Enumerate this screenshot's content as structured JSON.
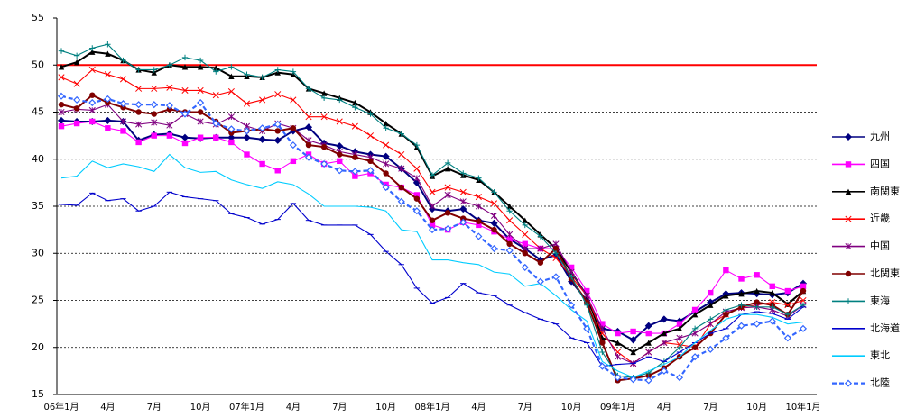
{
  "chart_data": {
    "type": "line",
    "categories": [
      "06年1月",
      null,
      null,
      "4月",
      null,
      null,
      "7月",
      null,
      null,
      "10月",
      null,
      null,
      "07年1月",
      null,
      null,
      "4月",
      null,
      null,
      "7月",
      null,
      null,
      "10月",
      null,
      null,
      "08年1月",
      null,
      null,
      "4月",
      null,
      null,
      "7月",
      null,
      null,
      "10月",
      null,
      null,
      "09年1月",
      null,
      null,
      "4月",
      null,
      null,
      "7月",
      null,
      null,
      "10月",
      null,
      null,
      "10年1月"
    ],
    "ylim": [
      15,
      55
    ],
    "yticks": [
      15,
      20,
      25,
      30,
      35,
      40,
      45,
      50,
      55
    ],
    "grid": true,
    "reference_line": {
      "value": 50,
      "color": "#ff0000"
    },
    "series": [
      {
        "name": "九州",
        "color": "#000080",
        "marker": "diamond",
        "dash": false,
        "values": [
          44.1,
          44.0,
          44.0,
          44.1,
          44.0,
          42.0,
          42.6,
          42.7,
          42.3,
          42.2,
          42.3,
          42.3,
          42.3,
          42.1,
          42.0,
          43.0,
          43.4,
          41.7,
          41.4,
          40.8,
          40.5,
          40.3,
          39.0,
          37.5,
          34.7,
          34.5,
          34.7,
          33.5,
          33.2,
          31.5,
          30.5,
          29.3,
          29.8,
          27.0,
          25.0,
          22.0,
          21.7,
          20.8,
          22.3,
          23.0,
          22.8,
          23.8,
          24.8,
          25.7,
          25.8,
          25.7,
          25.6,
          25.8,
          26.8
        ]
      },
      {
        "name": "四国",
        "color": "#ff00ff",
        "marker": "square",
        "dash": false,
        "values": [
          43.5,
          43.8,
          44.0,
          43.3,
          43.0,
          41.8,
          42.5,
          42.5,
          41.7,
          42.3,
          42.3,
          41.8,
          40.5,
          39.5,
          38.8,
          39.8,
          40.5,
          39.5,
          39.8,
          38.2,
          38.5,
          37.3,
          37.0,
          36.2,
          33.0,
          32.5,
          33.3,
          33.0,
          32.3,
          31.5,
          31.0,
          30.5,
          30.5,
          28.5,
          26.0,
          22.5,
          21.5,
          21.7,
          21.5,
          21.5,
          22.5,
          24.0,
          25.8,
          28.2,
          27.3,
          27.7,
          26.5,
          26.0,
          26.5
        ]
      },
      {
        "name": "南関東",
        "color": "#000000",
        "marker": "triangle",
        "dash": false,
        "values": [
          49.8,
          50.3,
          51.4,
          51.2,
          50.5,
          49.5,
          49.2,
          50.0,
          49.8,
          49.8,
          49.7,
          48.8,
          48.8,
          48.7,
          49.2,
          49.0,
          47.5,
          47.0,
          46.5,
          46.0,
          45.0,
          43.8,
          42.7,
          41.3,
          38.2,
          39.0,
          38.3,
          37.8,
          36.5,
          35.0,
          33.5,
          32.0,
          30.5,
          28.0,
          25.5,
          21.0,
          20.5,
          19.5,
          20.5,
          21.5,
          22.0,
          23.5,
          24.5,
          25.5,
          25.7,
          26.0,
          25.8,
          24.6,
          26.0
        ]
      },
      {
        "name": "近畿",
        "color": "#ff0000",
        "marker": "x",
        "dash": false,
        "values": [
          48.7,
          48.0,
          49.5,
          49.0,
          48.5,
          47.5,
          47.5,
          47.6,
          47.3,
          47.3,
          46.8,
          47.2,
          45.9,
          46.3,
          46.9,
          46.3,
          44.5,
          44.5,
          44.0,
          43.5,
          42.5,
          41.5,
          40.5,
          39.0,
          36.5,
          37.0,
          36.5,
          36.0,
          35.3,
          33.5,
          32.0,
          30.5,
          29.5,
          27.5,
          25.5,
          21.5,
          19.5,
          18.3,
          19.5,
          20.5,
          20.3,
          20.0,
          22.5,
          23.5,
          24.3,
          24.5,
          24.8,
          24.5,
          25.0
        ]
      },
      {
        "name": "中国",
        "color": "#800080",
        "marker": "star",
        "dash": false,
        "values": [
          45.0,
          45.3,
          45.2,
          45.8,
          44.0,
          43.7,
          43.9,
          43.6,
          44.8,
          44.0,
          43.7,
          44.5,
          43.5,
          43.0,
          43.8,
          43.3,
          42.0,
          41.5,
          40.8,
          40.5,
          40.2,
          39.5,
          39.0,
          38.0,
          35.0,
          36.2,
          35.5,
          35.0,
          34.0,
          32.0,
          30.5,
          30.5,
          31.0,
          28.0,
          25.5,
          22.0,
          19.0,
          18.3,
          19.5,
          20.5,
          21.0,
          21.5,
          22.5,
          23.8,
          24.2,
          24.3,
          24.0,
          23.3,
          24.5
        ]
      },
      {
        "name": "北関東",
        "color": "#800000",
        "marker": "circle",
        "dash": false,
        "values": [
          45.8,
          45.4,
          46.8,
          46.0,
          45.5,
          45.0,
          44.8,
          45.3,
          45.0,
          45.0,
          44.0,
          42.8,
          43.0,
          43.2,
          43.0,
          43.3,
          41.5,
          41.3,
          40.5,
          40.2,
          39.8,
          38.5,
          37.0,
          35.8,
          33.5,
          34.3,
          33.7,
          33.4,
          32.5,
          31.0,
          30.0,
          29.0,
          30.5,
          27.3,
          24.8,
          20.5,
          16.5,
          16.7,
          17.0,
          17.8,
          19.0,
          20.0,
          21.5,
          23.5,
          24.3,
          24.8,
          24.5,
          23.5,
          26.0
        ]
      },
      {
        "name": "東海",
        "color": "#008080",
        "marker": "plus",
        "dash": false,
        "values": [
          51.5,
          51.0,
          51.8,
          52.2,
          50.5,
          49.5,
          49.5,
          50.0,
          50.8,
          50.5,
          49.3,
          49.8,
          49.0,
          48.7,
          49.5,
          49.3,
          47.5,
          46.5,
          46.3,
          45.5,
          44.8,
          43.3,
          42.7,
          41.5,
          38.3,
          39.6,
          38.5,
          38.0,
          36.5,
          34.5,
          33.0,
          31.8,
          30.0,
          27.5,
          24.5,
          19.5,
          17.0,
          16.8,
          17.3,
          18.5,
          20.0,
          22.0,
          23.0,
          24.0,
          24.5,
          24.3,
          24.3,
          23.5,
          24.5
        ]
      },
      {
        "name": "北海道",
        "color": "#0000cc",
        "marker": "dash",
        "dash": false,
        "values": [
          35.2,
          35.1,
          36.4,
          35.6,
          35.8,
          34.5,
          35.0,
          36.5,
          36.0,
          35.8,
          35.6,
          34.2,
          33.8,
          33.1,
          33.6,
          35.3,
          33.5,
          33.0,
          33.0,
          33.0,
          32.0,
          30.2,
          28.8,
          26.3,
          24.7,
          25.3,
          26.8,
          25.8,
          25.5,
          24.5,
          23.7,
          23.0,
          22.5,
          21.0,
          20.5,
          18.0,
          18.2,
          18.3,
          19.0,
          18.5,
          19.5,
          20.5,
          21.5,
          22.0,
          23.5,
          23.8,
          23.6,
          23.0,
          24.3
        ]
      },
      {
        "name": "東北",
        "color": "#00ccff",
        "marker": "none",
        "dash": false,
        "values": [
          38.0,
          38.2,
          39.8,
          39.1,
          39.5,
          39.2,
          38.7,
          40.5,
          39.1,
          38.6,
          38.7,
          37.8,
          37.3,
          36.9,
          37.6,
          37.3,
          36.3,
          35.0,
          35.0,
          35.0,
          34.9,
          34.5,
          32.5,
          32.3,
          29.3,
          29.3,
          29.0,
          28.8,
          28.0,
          27.8,
          26.5,
          26.8,
          25.5,
          24.0,
          22.8,
          18.5,
          17.5,
          16.8,
          17.5,
          18.2,
          19.0,
          20.5,
          21.8,
          23.0,
          23.5,
          23.5,
          23.2,
          22.5,
          22.7
        ]
      },
      {
        "name": "北陸",
        "color": "#3366ff",
        "marker": "open-diamond",
        "dash": true,
        "values": [
          46.7,
          46.3,
          46.0,
          46.4,
          45.9,
          45.8,
          45.8,
          45.7,
          44.8,
          46.0,
          43.8,
          43.2,
          43.0,
          43.3,
          43.7,
          41.5,
          40.2,
          39.5,
          38.8,
          38.7,
          38.8,
          37.0,
          35.5,
          34.5,
          32.5,
          32.6,
          33.3,
          31.8,
          30.5,
          30.3,
          28.5,
          27.0,
          27.5,
          24.5,
          22.0,
          18.0,
          16.8,
          16.6,
          16.5,
          17.5,
          16.8,
          19.0,
          19.8,
          21.0,
          22.3,
          22.5,
          22.8,
          21.0,
          22.0
        ]
      }
    ]
  }
}
